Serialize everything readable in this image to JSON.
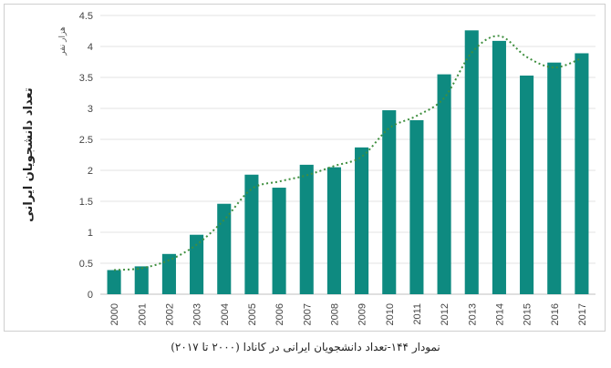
{
  "caption": "نمودار ۱۴۴-تعداد دانشجویان ایرانی در کانادا (۲۰۰۰ تا ۲۰۱۷)",
  "chart_data": {
    "type": "bar",
    "categories": [
      "2000",
      "2001",
      "2002",
      "2003",
      "2004",
      "2005",
      "2006",
      "2007",
      "2008",
      "2009",
      "2010",
      "2011",
      "2012",
      "2013",
      "2014",
      "2015",
      "2016",
      "2017"
    ],
    "values": [
      0.39,
      0.45,
      0.65,
      0.96,
      1.46,
      1.93,
      1.72,
      2.09,
      2.05,
      2.37,
      2.97,
      2.81,
      3.55,
      4.26,
      4.09,
      3.53,
      3.74,
      3.89
    ],
    "trendline": [
      0.39,
      0.42,
      0.55,
      0.8,
      1.2,
      1.7,
      1.82,
      1.92,
      2.07,
      2.22,
      2.68,
      2.88,
      3.17,
      3.9,
      4.17,
      3.83,
      3.66,
      3.81
    ],
    "ylim": [
      0,
      4.5
    ],
    "yticks": [
      "0",
      "0.5",
      "1",
      "1.5",
      "2",
      "2.5",
      "3",
      "3.5",
      "4",
      "4.5"
    ],
    "ylabel": "تعداد دانشجویان ایرانی",
    "unit_label": "هزار نفر",
    "xlabel": "",
    "title": "",
    "colors": {
      "bar": "#0e8a80",
      "trendline": "#3f8f3f"
    },
    "grid": true
  }
}
